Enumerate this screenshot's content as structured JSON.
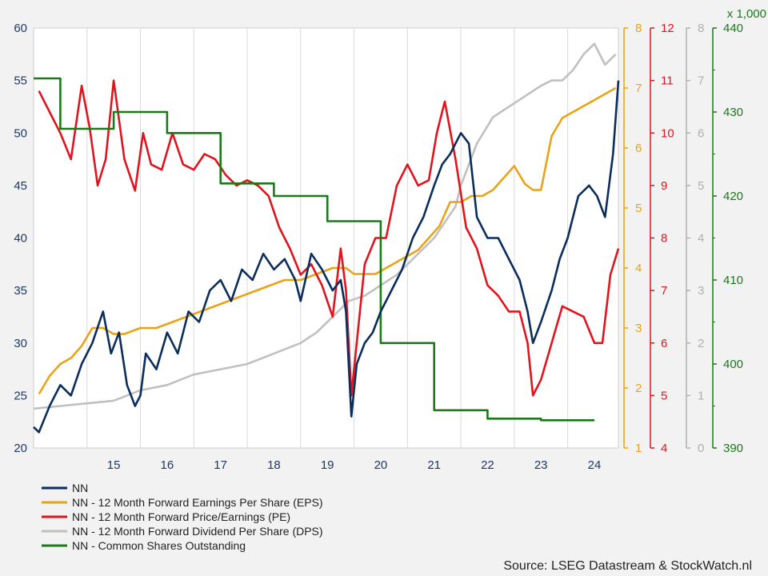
{
  "chart_data": {
    "type": "line",
    "x_tick_labels": [
      "15",
      "16",
      "17",
      "18",
      "19",
      "20",
      "21",
      "22",
      "23",
      "24"
    ],
    "axes": {
      "left": {
        "series": "NN",
        "range": [
          20,
          60
        ],
        "ticks": [
          "20",
          "25",
          "30",
          "35",
          "40",
          "45",
          "50",
          "55",
          "60"
        ],
        "color": "#1f3864"
      },
      "eps": {
        "series": "NN - 12 Month Forward Earnings Per Share (EPS)",
        "range": [
          1,
          8
        ],
        "ticks": [
          "1",
          "2",
          "3",
          "4",
          "5",
          "6",
          "7",
          "8"
        ],
        "color": "#e8a317"
      },
      "pe": {
        "series": "NN - 12 Month Forward Price/Earnings (PE)",
        "range": [
          4,
          12
        ],
        "ticks": [
          "4",
          "5",
          "6",
          "7",
          "8",
          "9",
          "10",
          "11",
          "12"
        ],
        "color": "#e0141e"
      },
      "dps": {
        "series": "NN - 12 Month Forward Dividend Per Share (DPS)",
        "range": [
          0,
          8
        ],
        "ticks": [
          "0",
          "1",
          "2",
          "3",
          "4",
          "5",
          "6",
          "7",
          "8"
        ],
        "color": "#b0b0b0"
      },
      "shares": {
        "series": "NN - Common Shares Outstanding",
        "range": [
          390,
          440
        ],
        "ticks": [
          "390",
          "400",
          "410",
          "420",
          "430",
          "440"
        ],
        "multiplier_label": "x 1,000",
        "color": "#1a7a1a"
      }
    },
    "series": [
      {
        "name": "NN",
        "axis": "left",
        "color": "#0b2d5b",
        "x": [
          2014.0,
          2014.1,
          2014.3,
          2014.5,
          2014.7,
          2014.9,
          2015.1,
          2015.3,
          2015.45,
          2015.6,
          2015.75,
          2015.9,
          2016.0,
          2016.1,
          2016.3,
          2016.5,
          2016.7,
          2016.9,
          2017.1,
          2017.3,
          2017.5,
          2017.7,
          2017.9,
          2018.1,
          2018.3,
          2018.5,
          2018.7,
          2018.9,
          2019.0,
          2019.2,
          2019.4,
          2019.6,
          2019.75,
          2019.85,
          2019.95,
          2020.05,
          2020.2,
          2020.35,
          2020.5,
          2020.7,
          2020.9,
          2021.1,
          2021.3,
          2021.5,
          2021.65,
          2021.8,
          2022.0,
          2022.15,
          2022.3,
          2022.5,
          2022.7,
          2022.9,
          2023.1,
          2023.25,
          2023.35,
          2023.5,
          2023.7,
          2023.85,
          2024.0,
          2024.2,
          2024.4,
          2024.55,
          2024.7,
          2024.85,
          2024.95
        ],
        "y": [
          22,
          21.5,
          24,
          26,
          25,
          28,
          30,
          33,
          29,
          31,
          26,
          24,
          25,
          29,
          27.5,
          31,
          29,
          33,
          32,
          35,
          36,
          34,
          37,
          36,
          38.5,
          37,
          38,
          36,
          34,
          38.5,
          37,
          35,
          36,
          33,
          23,
          28,
          30,
          31,
          33,
          35,
          37,
          40,
          42,
          45,
          47,
          48,
          50,
          49,
          42,
          40,
          40,
          38,
          36,
          33,
          30,
          32,
          35,
          38,
          40,
          44,
          45,
          44,
          42,
          48,
          55
        ]
      },
      {
        "name": "NN - 12 Month Forward Earnings Per Share (EPS)",
        "axis": "eps",
        "color": "#e8a317",
        "x": [
          2014.1,
          2014.3,
          2014.5,
          2014.7,
          2014.9,
          2015.1,
          2015.3,
          2015.5,
          2015.7,
          2016.0,
          2016.3,
          2016.6,
          2016.9,
          2017.2,
          2017.5,
          2017.8,
          2018.1,
          2018.4,
          2018.7,
          2019.0,
          2019.3,
          2019.6,
          2019.85,
          2020.0,
          2020.2,
          2020.4,
          2020.6,
          2020.8,
          2021.0,
          2021.2,
          2021.4,
          2021.6,
          2021.8,
          2022.0,
          2022.2,
          2022.4,
          2022.6,
          2022.8,
          2023.0,
          2023.2,
          2023.35,
          2023.5,
          2023.7,
          2023.9,
          2024.1,
          2024.3,
          2024.5,
          2024.7,
          2024.9
        ],
        "y": [
          1.9,
          2.2,
          2.4,
          2.5,
          2.7,
          3.0,
          3.0,
          2.9,
          2.9,
          3.0,
          3.0,
          3.1,
          3.2,
          3.3,
          3.4,
          3.5,
          3.6,
          3.7,
          3.8,
          3.8,
          3.9,
          4.0,
          4.0,
          3.9,
          3.9,
          3.9,
          4.0,
          4.1,
          4.2,
          4.3,
          4.5,
          4.7,
          5.1,
          5.1,
          5.2,
          5.2,
          5.3,
          5.5,
          5.7,
          5.4,
          5.3,
          5.3,
          6.2,
          6.5,
          6.6,
          6.7,
          6.8,
          6.9,
          7.0
        ]
      },
      {
        "name": "NN - 12 Month Forward Price/Earnings (PE)",
        "axis": "pe",
        "color": "#e0141e",
        "x": [
          2014.1,
          2014.3,
          2014.5,
          2014.7,
          2014.9,
          2015.05,
          2015.2,
          2015.35,
          2015.5,
          2015.7,
          2015.9,
          2016.05,
          2016.2,
          2016.4,
          2016.6,
          2016.8,
          2017.0,
          2017.2,
          2017.4,
          2017.6,
          2017.8,
          2018.0,
          2018.2,
          2018.4,
          2018.6,
          2018.8,
          2019.0,
          2019.2,
          2019.4,
          2019.6,
          2019.75,
          2019.85,
          2019.95,
          2020.05,
          2020.2,
          2020.4,
          2020.6,
          2020.8,
          2021.0,
          2021.2,
          2021.4,
          2021.55,
          2021.7,
          2021.9,
          2022.1,
          2022.3,
          2022.5,
          2022.7,
          2022.9,
          2023.1,
          2023.25,
          2023.35,
          2023.5,
          2023.7,
          2023.9,
          2024.1,
          2024.3,
          2024.5,
          2024.65,
          2024.8,
          2024.95
        ],
        "y": [
          10.8,
          10.4,
          10.0,
          9.5,
          10.9,
          10.1,
          9.0,
          9.5,
          11.0,
          9.5,
          8.9,
          10.0,
          9.4,
          9.3,
          10.0,
          9.4,
          9.3,
          9.6,
          9.5,
          9.2,
          9.0,
          9.1,
          9.0,
          8.8,
          8.2,
          7.8,
          7.3,
          7.5,
          7.1,
          6.5,
          7.8,
          7.0,
          5.0,
          6.0,
          7.5,
          8.0,
          8.0,
          9.0,
          9.4,
          9.0,
          9.1,
          10.0,
          10.6,
          9.5,
          8.2,
          7.8,
          7.1,
          6.9,
          6.6,
          6.6,
          6.0,
          5.0,
          5.3,
          6.0,
          6.7,
          6.6,
          6.5,
          6.0,
          6.0,
          7.3,
          7.8
        ]
      },
      {
        "name": "NN - 12 Month Forward Dividend Per Share (DPS)",
        "axis": "dps",
        "color": "#c0c0c0",
        "x": [
          2014.0,
          2014.5,
          2015.0,
          2015.5,
          2016.0,
          2016.5,
          2017.0,
          2017.5,
          2018.0,
          2018.5,
          2019.0,
          2019.3,
          2019.6,
          2019.9,
          2020.2,
          2020.5,
          2020.8,
          2021.1,
          2021.3,
          2021.5,
          2021.7,
          2021.9,
          2022.0,
          2022.3,
          2022.6,
          2022.9,
          2023.2,
          2023.5,
          2023.7,
          2023.9,
          2024.1,
          2024.3,
          2024.5,
          2024.7,
          2024.9
        ],
        "y": [
          0.75,
          0.8,
          0.85,
          0.9,
          1.1,
          1.2,
          1.4,
          1.5,
          1.6,
          1.8,
          2.0,
          2.2,
          2.5,
          2.8,
          2.9,
          3.1,
          3.3,
          3.6,
          3.8,
          4.0,
          4.3,
          4.6,
          5.0,
          5.8,
          6.3,
          6.5,
          6.7,
          6.9,
          7.0,
          7.0,
          7.2,
          7.5,
          7.7,
          7.3,
          7.5
        ]
      },
      {
        "name": "NN - Common Shares Outstanding",
        "axis": "shares",
        "color": "#1a7a1a",
        "x": [
          2014.0,
          2014.5,
          2014.5,
          2015.5,
          2015.5,
          2016.5,
          2016.5,
          2017.5,
          2017.5,
          2018.5,
          2018.5,
          2019.5,
          2019.5,
          2020.5,
          2020.5,
          2021.5,
          2021.5,
          2022.5,
          2022.5,
          2023.5,
          2023.5,
          2024.5
        ],
        "y": [
          434,
          434,
          428,
          428,
          430,
          430,
          427.5,
          427.5,
          421.5,
          421.5,
          420,
          420,
          417,
          417,
          402.5,
          402.5,
          394.5,
          394.5,
          393.5,
          393.5,
          393.3,
          393.3
        ]
      }
    ],
    "legend": {
      "placement": "bottom-left",
      "entries": [
        "NN",
        "NN - 12 Month Forward Earnings Per Share (EPS)",
        "NN - 12 Month Forward Price/Earnings (PE)",
        "NN - 12 Month Forward Dividend Per Share (DPS)",
        "NN - Common Shares Outstanding"
      ]
    },
    "source": "Source: LSEG Datastream & StockWatch.nl",
    "grid": {
      "vertical": true,
      "horizontal": false
    }
  }
}
